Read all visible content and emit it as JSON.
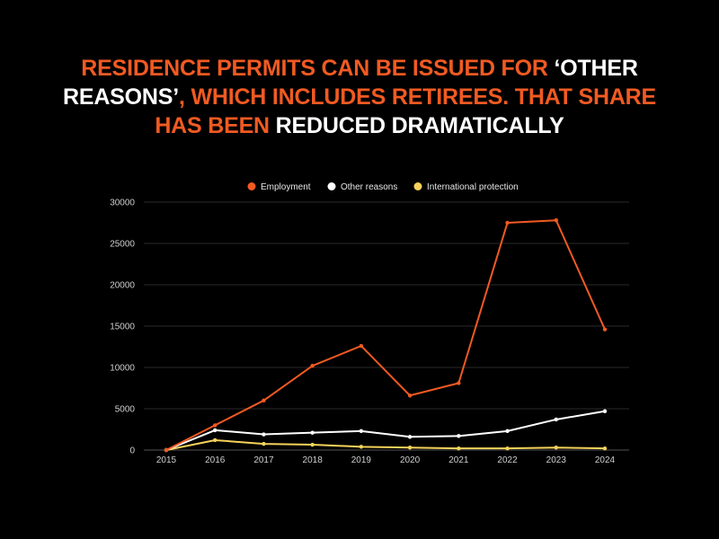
{
  "title_segments": [
    {
      "text": "RESIDENCE PERMITS CAN BE ISSUED FOR ",
      "color": "orange"
    },
    {
      "text": "‘OTHER REASONS’",
      "color": "white"
    },
    {
      "text": ", WHICH INCLUDES RETIREES. THAT SHARE HAS BEEN ",
      "color": "orange"
    },
    {
      "text": "REDUCED DRAMATICALLY",
      "color": "white"
    }
  ],
  "chart_data": {
    "type": "line",
    "title": "RESIDENCE PERMITS CAN BE ISSUED FOR ‘OTHER REASONS’, WHICH INCLUDES RETIREES. THAT SHARE HAS BEEN REDUCED DRAMATICALLY",
    "xlabel": "",
    "ylabel": "",
    "x": [
      "2015",
      "2016",
      "2017",
      "2018",
      "2019",
      "2020",
      "2021",
      "2022",
      "2023",
      "2024"
    ],
    "ylim": [
      0,
      30000
    ],
    "yticks": [
      "0",
      "5000",
      "10000",
      "15000",
      "20000",
      "25000",
      "30000"
    ],
    "grid": true,
    "legend_position": "top-center",
    "series": [
      {
        "name": "Employment",
        "color": "#f15a22",
        "values": [
          0,
          3000,
          6000,
          10200,
          12600,
          6600,
          8100,
          27500,
          27800,
          14600
        ]
      },
      {
        "name": "Other reasons",
        "color": "#ffffff",
        "values": [
          0,
          2400,
          1900,
          2100,
          2300,
          1600,
          1700,
          2300,
          3700,
          4700
        ]
      },
      {
        "name": "International protection",
        "color": "#f5d25a",
        "values": [
          0,
          1200,
          750,
          650,
          400,
          300,
          200,
          200,
          300,
          200
        ]
      }
    ]
  }
}
